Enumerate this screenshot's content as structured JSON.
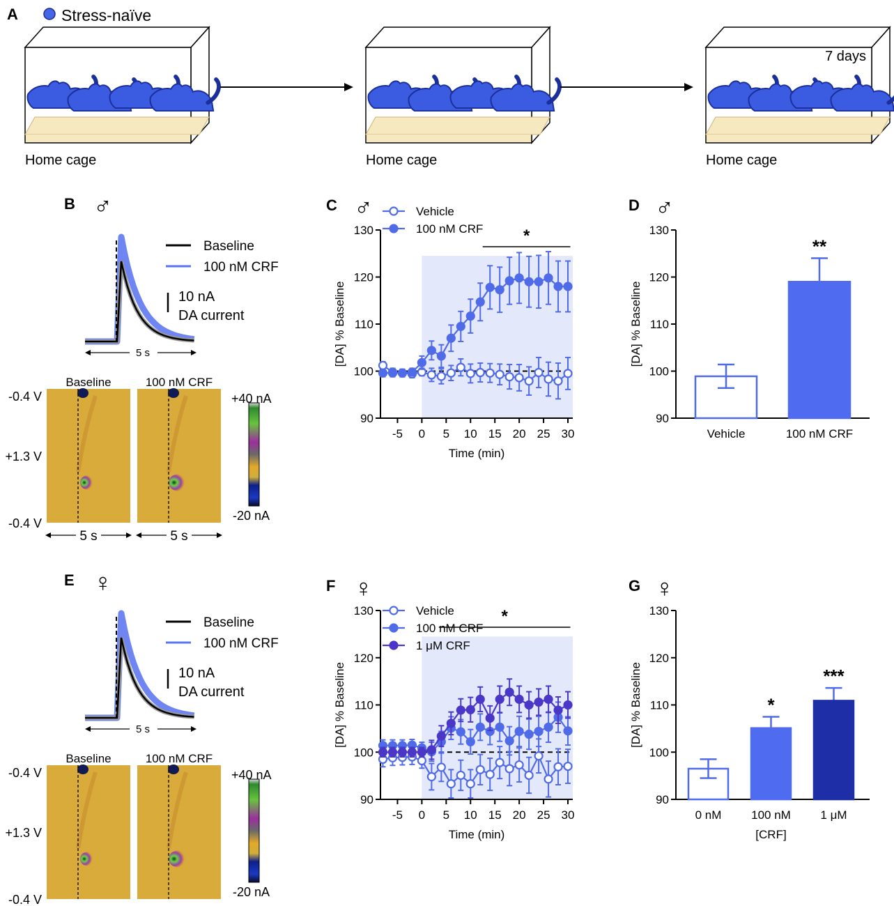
{
  "colors": {
    "vehicle": "#4f6be8",
    "crf100": "#4f6be8",
    "crf1u": "#4b37c7",
    "bar_vehicle_fill": "#ffffff",
    "bar_crf100_fill": "#4f6bef",
    "bar_crf1u_fill": "#1d2ea6",
    "shade": "#e4e8fb",
    "mouse": "#3b5be0",
    "bedding": "#f6e8bf"
  },
  "panelA": {
    "label": "A",
    "legend": "Stress-naïve",
    "cages": [
      {
        "caption": "Home cage",
        "note": ""
      },
      {
        "caption": "Home cage",
        "note": ""
      },
      {
        "caption": "Home cage",
        "note": "7 days"
      }
    ]
  },
  "panelB": {
    "label": "B",
    "sex": "♂",
    "legend": [
      "Baseline",
      "100 nM CRF"
    ],
    "scale_value": "10 nA",
    "scale_label": "DA current",
    "time_scale": "5 s",
    "cv_titles": [
      "Baseline",
      "100 nM CRF"
    ],
    "voltage_labels": [
      "-0.4 V",
      "+1.3 V",
      "-0.4 V"
    ],
    "colorbar_top": "+40 nA",
    "colorbar_bottom": "-20 nA"
  },
  "panelE": {
    "label": "E",
    "sex": "♀",
    "legend": [
      "Baseline",
      "100 nM CRF"
    ],
    "scale_value": "10 nA",
    "scale_label": "DA current",
    "time_scale": "5 s",
    "cv_titles": [
      "Baseline",
      "100 nM CRF"
    ],
    "voltage_labels": [
      "-0.4 V",
      "+1.3 V",
      "-0.4 V"
    ],
    "colorbar_top": "+40 nA",
    "colorbar_bottom": "-20 nA"
  },
  "chart_data": [
    {
      "id": "C",
      "type": "line",
      "label": "C",
      "sex": "♂",
      "xlabel": "Time (min)",
      "ylabel": "[DA] % Baseline",
      "ylim": [
        90,
        130
      ],
      "xlim": [
        -8.5,
        31
      ],
      "yticks": [
        90,
        100,
        110,
        120,
        130
      ],
      "xticks": [
        -5,
        0,
        5,
        10,
        15,
        20,
        25,
        30
      ],
      "shaded_from": 0,
      "baseline": 100,
      "significance": {
        "text": "*",
        "from": 12.5,
        "to": 30.5
      },
      "x": [
        -8,
        -6,
        -4,
        -2,
        0,
        2,
        4,
        6,
        8,
        10,
        12,
        14,
        16,
        18,
        20,
        22,
        24,
        26,
        28,
        30
      ],
      "series": [
        {
          "name": "Vehicle",
          "filled": false,
          "color": "#4f6be8",
          "values": [
            101.2,
            99.8,
            99.6,
            99.4,
            99.8,
            99.2,
            98.9,
            99.6,
            100.8,
            99.5,
            99.7,
            99.6,
            99.3,
            98.8,
            98.6,
            97.9,
            99.7,
            98.3,
            97.9,
            99.5
          ],
          "errors": [
            0.8,
            0.8,
            0.8,
            0.8,
            0.8,
            1.4,
            1.6,
            1.6,
            1.8,
            2.0,
            2.0,
            2.0,
            2.2,
            2.6,
            2.8,
            3.0,
            3.2,
            3.6,
            3.8,
            3.4
          ]
        },
        {
          "name": "100 nM CRF",
          "filled": true,
          "color": "#4f6be8",
          "values": [
            99.6,
            99.6,
            99.6,
            99.8,
            101.8,
            104.4,
            103.2,
            107.0,
            109.5,
            111.7,
            114.7,
            117.8,
            117.3,
            119.2,
            119.8,
            119.0,
            119.0,
            119.8,
            118.0,
            118.0
          ],
          "errors": [
            0.8,
            0.8,
            0.8,
            0.8,
            1.4,
            2.0,
            2.4,
            2.8,
            3.2,
            3.6,
            4.0,
            4.6,
            4.8,
            5.0,
            5.4,
            5.4,
            5.6,
            5.6,
            5.4,
            5.4
          ]
        }
      ]
    },
    {
      "id": "D",
      "type": "bar",
      "label": "D",
      "sex": "♂",
      "ylabel": "[DA] % Baseline",
      "ylim": [
        90,
        130
      ],
      "yticks": [
        90,
        100,
        110,
        120,
        130
      ],
      "categories": [
        "Vehicle",
        "100 nM CRF"
      ],
      "xlabel": "",
      "values": [
        98.9,
        119.0
      ],
      "errors": [
        2.5,
        5.0
      ],
      "significance": [
        "",
        "**"
      ],
      "fills": [
        "#ffffff",
        "#4f6bef"
      ]
    },
    {
      "id": "F",
      "type": "line",
      "label": "F",
      "sex": "♀",
      "xlabel": "Time (min)",
      "ylabel": "[DA] % Baseline",
      "ylim": [
        90,
        130
      ],
      "xlim": [
        -8.5,
        31
      ],
      "yticks": [
        90,
        100,
        110,
        120,
        130
      ],
      "xticks": [
        -5,
        0,
        5,
        10,
        15,
        20,
        25,
        30
      ],
      "shaded_from": 0,
      "baseline": 100,
      "significance": {
        "text": "*",
        "from": 3.5,
        "to": 30.5
      },
      "x": [
        -8,
        -6,
        -4,
        -2,
        0,
        2,
        4,
        6,
        8,
        10,
        12,
        14,
        16,
        18,
        20,
        22,
        24,
        26,
        28,
        30
      ],
      "series": [
        {
          "name": "Vehicle",
          "filled": false,
          "color": "#4f6be8",
          "values": [
            98.5,
            98.8,
            98.9,
            99.0,
            98.2,
            94.8,
            96.8,
            93.3,
            95.1,
            93.3,
            96.3,
            95.3,
            97.8,
            96.5,
            97.3,
            95.1,
            99.2,
            94.3,
            96.9,
            97.0
          ],
          "errors": [
            1.6,
            1.6,
            1.6,
            1.6,
            1.6,
            2.8,
            3.0,
            3.0,
            3.2,
            3.0,
            3.2,
            3.4,
            3.4,
            3.6,
            3.6,
            3.8,
            3.6,
            3.8,
            3.8,
            3.6
          ]
        },
        {
          "name": "100 nM CRF",
          "filled": true,
          "color": "#4f6be8",
          "values": [
            101.4,
            101.4,
            101.4,
            101.5,
            100.9,
            100.1,
            102.2,
            105.1,
            104.3,
            102.2,
            105.3,
            104.4,
            105.3,
            102.4,
            104.4,
            103.8,
            104.4,
            105.3,
            107.4,
            104.5
          ],
          "errors": [
            1.2,
            1.2,
            1.2,
            1.2,
            1.2,
            2.0,
            2.2,
            2.4,
            2.6,
            2.6,
            2.8,
            2.8,
            3.0,
            3.0,
            3.2,
            3.2,
            3.2,
            3.2,
            3.2,
            3.0
          ]
        },
        {
          "name": "1 μM CRF",
          "filled": true,
          "color": "#4b37c7",
          "values": [
            100.0,
            100.0,
            100.0,
            100.0,
            100.0,
            100.5,
            103.4,
            106.1,
            108.9,
            109.0,
            111.2,
            107.2,
            111.2,
            112.7,
            111.2,
            110.0,
            110.6,
            111.2,
            108.9,
            110.0
          ],
          "errors": [
            1.0,
            1.0,
            1.0,
            1.0,
            1.0,
            2.0,
            2.2,
            2.4,
            2.4,
            2.6,
            2.6,
            2.6,
            2.8,
            2.8,
            2.8,
            2.8,
            2.8,
            2.8,
            2.8,
            2.8
          ]
        }
      ]
    },
    {
      "id": "G",
      "type": "bar",
      "label": "G",
      "sex": "♀",
      "ylabel": "[DA] % Baseline",
      "ylim": [
        90,
        130
      ],
      "yticks": [
        90,
        100,
        110,
        120,
        130
      ],
      "categories": [
        "0 nM",
        "100 nM",
        "1 μM"
      ],
      "xlabel": "[CRF]",
      "values": [
        96.5,
        105.1,
        110.9
      ],
      "errors": [
        2.0,
        2.4,
        2.7
      ],
      "significance": [
        "",
        "*",
        "***"
      ],
      "fills": [
        "#ffffff",
        "#4f6bef",
        "#1d2ea6"
      ]
    }
  ]
}
